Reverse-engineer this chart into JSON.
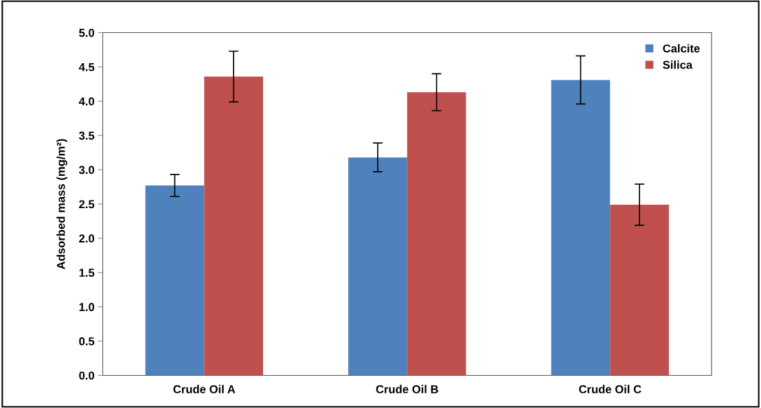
{
  "chart_data": {
    "type": "bar",
    "ylabel": "Adsorbed mass (mg/m²)",
    "categories": [
      "Crude Oil A",
      "Crude Oil B",
      "Crude Oil C"
    ],
    "series": [
      {
        "name": "Calcite",
        "color": "#4f81bd",
        "values": [
          2.77,
          3.18,
          4.31
        ],
        "errors": [
          0.16,
          0.21,
          0.35
        ]
      },
      {
        "name": "Silica",
        "color": "#c0504d",
        "values": [
          4.36,
          4.13,
          2.49
        ],
        "errors": [
          0.37,
          0.27,
          0.3
        ]
      }
    ],
    "ylim": [
      0,
      5
    ],
    "yticks": [
      {
        "value": 0,
        "label": "0.0"
      },
      {
        "value": 0.5,
        "label": "0.5"
      },
      {
        "value": 1,
        "label": "1.0"
      },
      {
        "value": 1.5,
        "label": "1.5"
      },
      {
        "value": 2,
        "label": "2.0"
      },
      {
        "value": 2.5,
        "label": "2.5"
      },
      {
        "value": 3,
        "label": "3.0"
      },
      {
        "value": 3.5,
        "label": "3.5"
      },
      {
        "value": 4,
        "label": "4.0"
      },
      {
        "value": 4.5,
        "label": "4.5"
      },
      {
        "value": 5,
        "label": "5.0"
      }
    ],
    "grid": false,
    "legend": "top right"
  }
}
